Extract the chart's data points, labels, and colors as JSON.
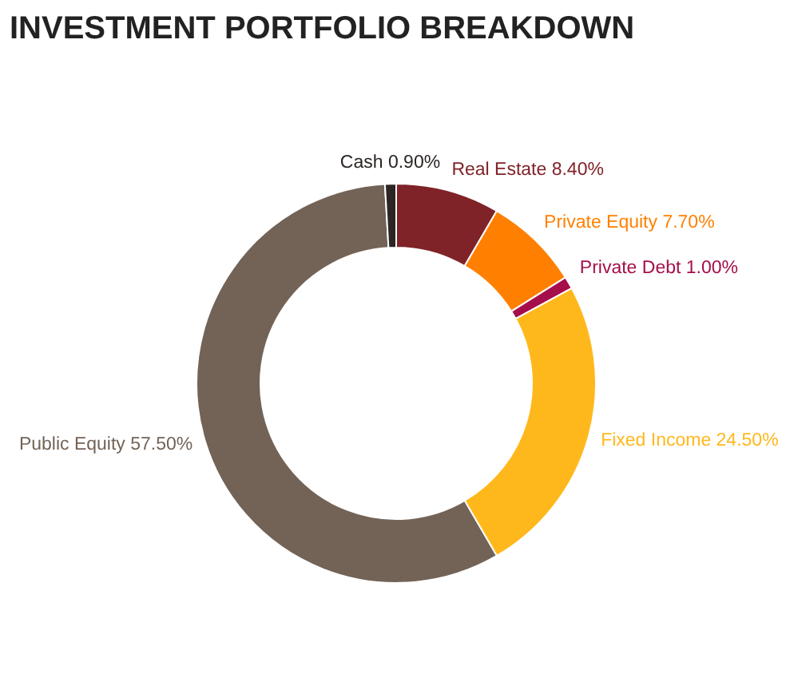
{
  "chart_data": {
    "type": "donut",
    "title": "INVESTMENT PORTFOLIO BREAKDOWN",
    "categories": [
      "Real Estate",
      "Private Equity",
      "Private Debt",
      "Fixed Income",
      "Public Equity",
      "Cash"
    ],
    "values": [
      8.4,
      7.7,
      1.0,
      24.5,
      57.5,
      0.9
    ],
    "value_labels": [
      "8.40%",
      "7.70%",
      "1.00%",
      "24.50%",
      "57.50%",
      "0.90%"
    ],
    "colors": [
      "#7f2328",
      "#ff8000",
      "#a50e4b",
      "#ffb81c",
      "#736357",
      "#2b2523"
    ],
    "legend": false
  }
}
